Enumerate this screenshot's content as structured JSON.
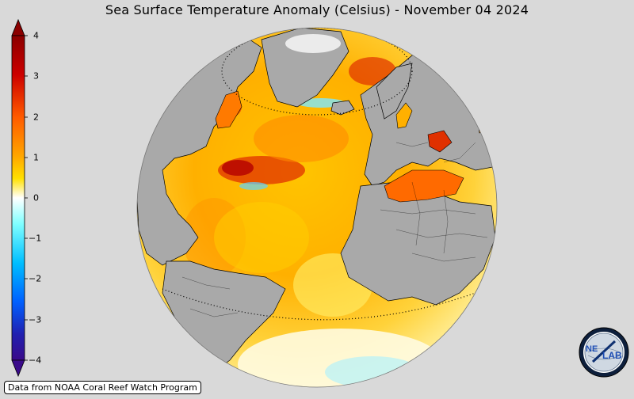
{
  "title": "Sea Surface Temperature Anomaly (Celsius) - November 04 2024",
  "colorbar": {
    "ticks": [
      "4",
      "3",
      "2",
      "1",
      "0",
      "−1",
      "−2",
      "−3",
      "−4"
    ],
    "colors": [
      "#8b0000",
      "#cc0000",
      "#ff4500",
      "#ff9900",
      "#ffdd00",
      "#ffffff",
      "#66ffff",
      "#00ccff",
      "#0066ff",
      "#1f2fa8",
      "#3a0a8a"
    ]
  },
  "credit": "Data from NOAA Coral Reef Watch Program",
  "logo": {
    "text_left": "NE",
    "text_right": "LAB"
  },
  "colors": {
    "background": "#d9d9d9",
    "land": "#a9a9a9",
    "ocean_warm": "#ffb300",
    "ocean_hot": "#e64a00",
    "ocean_neutral": "#fff7a0"
  }
}
